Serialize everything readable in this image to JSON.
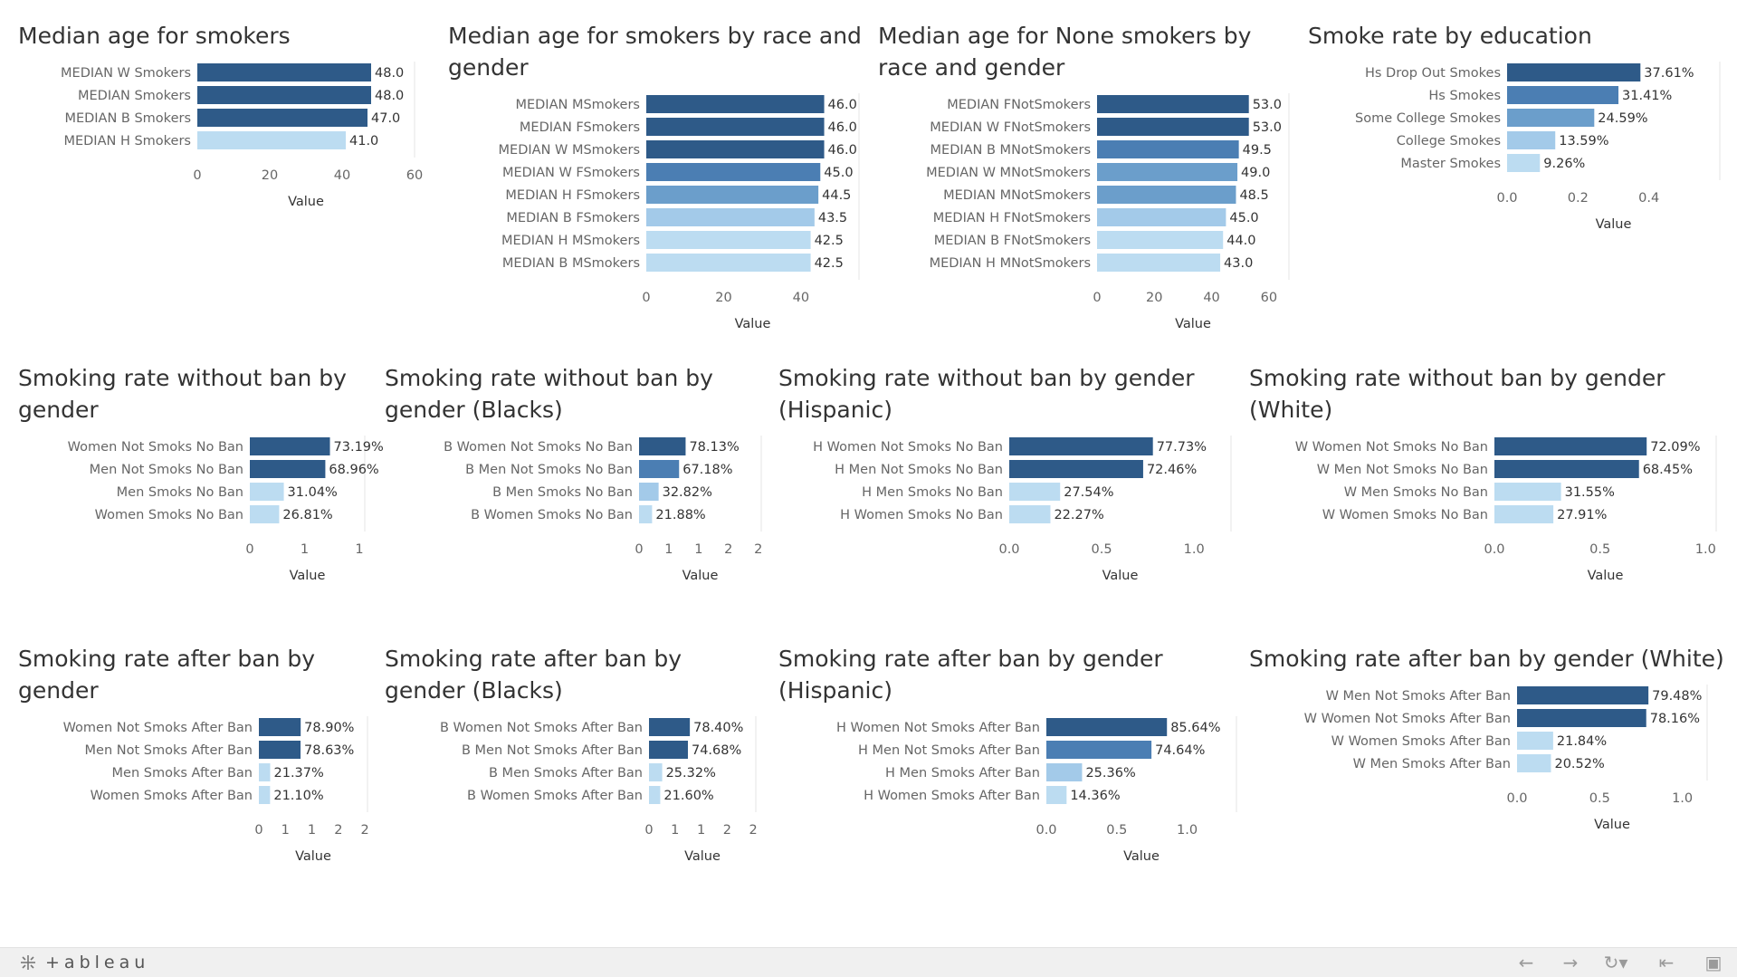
{
  "colors": {
    "dark": "#2e5a88",
    "mid_dark": "#4b7eb3",
    "mid": "#6b9ecb",
    "light": "#a3cae9",
    "lightest": "#bcdcf1"
  },
  "chart_data": [
    {
      "type": "bar",
      "title": "Median age for smokers",
      "xlabel": "Value",
      "xlim": [
        0,
        60
      ],
      "ticks": [
        0,
        20,
        40,
        60
      ],
      "tick_labels": [
        "0",
        "20",
        "40",
        "60"
      ],
      "categories": [
        "MEDIAN W Smokers",
        "MEDIAN Smokers",
        "MEDIAN B Smokers",
        "MEDIAN H Smokers"
      ],
      "values": [
        48.0,
        48.0,
        47.0,
        41.0
      ],
      "value_labels": [
        "48.0",
        "48.0",
        "47.0",
        "41.0"
      ]
    },
    {
      "type": "bar",
      "title": "Median age for smokers by race and gender",
      "xlabel": "Value",
      "xlim": [
        0,
        55
      ],
      "ticks": [
        0,
        20,
        40
      ],
      "tick_labels": [
        "0",
        "20",
        "40"
      ],
      "categories": [
        "MEDIAN MSmokers",
        "MEDIAN FSmokers",
        "MEDIAN W MSmokers",
        "MEDIAN W FSmokers",
        "MEDIAN H FSmokers",
        "MEDIAN B FSmokers",
        "MEDIAN H MSmokers",
        "MEDIAN B MSmokers"
      ],
      "values": [
        46.0,
        46.0,
        46.0,
        45.0,
        44.5,
        43.5,
        42.5,
        42.5
      ],
      "value_labels": [
        "46.0",
        "46.0",
        "46.0",
        "45.0",
        "44.5",
        "43.5",
        "42.5",
        "42.5"
      ]
    },
    {
      "type": "bar",
      "title": "Median age for None smokers by race and gender",
      "xlabel": "Value",
      "xlim": [
        0,
        67
      ],
      "ticks": [
        0,
        20,
        40,
        60
      ],
      "tick_labels": [
        "0",
        "20",
        "40",
        "60"
      ],
      "categories": [
        "MEDIAN FNotSmokers",
        "MEDIAN W FNotSmokers",
        "MEDIAN B MNotSmokers",
        "MEDIAN W MNotSmokers",
        "MEDIAN MNotSmokers",
        "MEDIAN H FNotSmokers",
        "MEDIAN B FNotSmokers",
        "MEDIAN H MNotSmokers"
      ],
      "values": [
        53.0,
        53.0,
        49.5,
        49.0,
        48.5,
        45.0,
        44.0,
        43.0
      ],
      "value_labels": [
        "53.0",
        "53.0",
        "49.5",
        "49.0",
        "48.5",
        "45.0",
        "44.0",
        "43.0"
      ]
    },
    {
      "type": "bar",
      "title": "Smoke rate by education",
      "xlabel": "Value",
      "xlim": [
        0,
        0.6
      ],
      "ticks": [
        0,
        0.2,
        0.4
      ],
      "tick_labels": [
        "0.0",
        "0.2",
        "0.4"
      ],
      "categories": [
        "Hs Drop Out Smokes",
        "Hs Smokes",
        "Some College Smokes",
        "College Smokes",
        "Master Smokes"
      ],
      "values": [
        0.3761,
        0.3141,
        0.2459,
        0.1359,
        0.0926
      ],
      "value_labels": [
        "37.61%",
        "31.41%",
        "24.59%",
        "13.59%",
        "9.26%"
      ]
    },
    {
      "type": "bar",
      "title": "Smoking rate without ban by gender",
      "xlabel": "Value",
      "xlim": [
        0,
        1.05
      ],
      "ticks": [
        0,
        0.5,
        1
      ],
      "tick_labels": [
        "0",
        "1",
        "1"
      ],
      "categories": [
        "Women Not Smoks No Ban",
        "Men Not Smoks No Ban",
        "Men Smoks No Ban",
        "Women Smoks No Ban"
      ],
      "values": [
        0.7319,
        0.6896,
        0.3104,
        0.2681
      ],
      "value_labels": [
        "73.19%",
        "68.96%",
        "31.04%",
        "26.81%"
      ]
    },
    {
      "type": "bar",
      "title": "Smoking rate without ban by gender (Blacks)",
      "xlabel": "Value",
      "xlim": [
        0,
        2.05
      ],
      "ticks": [
        0,
        0.5,
        1,
        1.5,
        2
      ],
      "tick_labels": [
        "0",
        "1",
        "1",
        "2",
        "2"
      ],
      "categories": [
        "B Women Not Smoks No Ban",
        "B Men Not Smoks No Ban",
        "B Men Smoks No Ban",
        "B Women Smoks No Ban"
      ],
      "values": [
        0.7813,
        0.6718,
        0.3282,
        0.2188
      ],
      "value_labels": [
        "78.13%",
        "67.18%",
        "32.82%",
        "21.88%"
      ]
    },
    {
      "type": "bar",
      "title": "Smoking rate without ban by gender (Hispanic)",
      "xlabel": "Value",
      "xlim": [
        0,
        1.2
      ],
      "ticks": [
        0,
        0.5,
        1
      ],
      "tick_labels": [
        "0.0",
        "0.5",
        "1.0"
      ],
      "categories": [
        "H Women Not Smoks No Ban",
        "H Men Not Smoks No Ban",
        "H Men Smoks No Ban",
        "H Women Smoks No Ban"
      ],
      "values": [
        0.7773,
        0.7246,
        0.2754,
        0.2227
      ],
      "value_labels": [
        "77.73%",
        "72.46%",
        "27.54%",
        "22.27%"
      ]
    },
    {
      "type": "bar",
      "title": "Smoking rate without ban by gender (White)",
      "xlabel": "Value",
      "xlim": [
        0,
        1.05
      ],
      "ticks": [
        0,
        0.5,
        1
      ],
      "tick_labels": [
        "0.0",
        "0.5",
        "1.0"
      ],
      "categories": [
        "W Women Not Smoks No Ban",
        "W Men Not Smoks No Ban",
        "W Men Smoks No Ban",
        "W Women Smoks No Ban"
      ],
      "values": [
        0.7209,
        0.6845,
        0.3155,
        0.2791
      ],
      "value_labels": [
        "72.09%",
        "68.45%",
        "31.55%",
        "27.91%"
      ]
    },
    {
      "type": "bar",
      "title": "Smoking rate after ban by gender",
      "xlabel": "Value",
      "xlim": [
        0,
        2.05
      ],
      "ticks": [
        0,
        0.5,
        1,
        1.5,
        2
      ],
      "tick_labels": [
        "0",
        "1",
        "1",
        "2",
        "2"
      ],
      "categories": [
        "Women Not Smoks After Ban",
        "Men Not Smoks After Ban",
        "Men Smoks After Ban",
        "Women Smoks After Ban"
      ],
      "values": [
        0.789,
        0.7863,
        0.2137,
        0.211
      ],
      "value_labels": [
        "78.90%",
        "78.63%",
        "21.37%",
        "21.10%"
      ]
    },
    {
      "type": "bar",
      "title": "Smoking rate after ban by gender (Blacks)",
      "xlabel": "Value",
      "xlim": [
        0,
        2.05
      ],
      "ticks": [
        0,
        0.5,
        1,
        1.5,
        2
      ],
      "tick_labels": [
        "0",
        "1",
        "1",
        "2",
        "2"
      ],
      "categories": [
        "B Women Not Smoks After Ban",
        "B Men Not Smoks After Ban",
        "B Men Smoks After Ban",
        "B Women Smoks After Ban"
      ],
      "values": [
        0.784,
        0.7468,
        0.2532,
        0.216
      ],
      "value_labels": [
        "78.40%",
        "74.68%",
        "25.32%",
        "21.60%"
      ]
    },
    {
      "type": "bar",
      "title": "Smoking rate after ban by gender (Hispanic)",
      "xlabel": "Value",
      "xlim": [
        0,
        1.35
      ],
      "ticks": [
        0,
        0.5,
        1
      ],
      "tick_labels": [
        "0.0",
        "0.5",
        "1.0"
      ],
      "categories": [
        "H Women Not Smoks After Ban",
        "H Men Not Smoks After Ban",
        "H Men Smoks After Ban",
        "H Women Smoks After Ban"
      ],
      "values": [
        0.8564,
        0.7464,
        0.2536,
        0.1436
      ],
      "value_labels": [
        "85.64%",
        "74.64%",
        "25.36%",
        "14.36%"
      ]
    },
    {
      "type": "bar",
      "title": "Smoking rate after ban by gender (White)",
      "xlabel": "Value",
      "xlim": [
        0,
        1.15
      ],
      "ticks": [
        0,
        0.5,
        1
      ],
      "tick_labels": [
        "0.0",
        "0.5",
        "1.0"
      ],
      "categories": [
        "W Men Not Smoks After Ban",
        "W Women Not Smoks After Ban",
        "W Women Smoks After Ban",
        "W Men Smoks After Ban"
      ],
      "values": [
        0.7948,
        0.7816,
        0.2184,
        0.2052
      ],
      "value_labels": [
        "79.48%",
        "78.16%",
        "21.84%",
        "20.52%"
      ]
    }
  ],
  "toolbar": {
    "brand": "+ableau",
    "undo_icon": "undo-icon",
    "redo_icon": "redo-icon",
    "revert_icon": "revert-icon",
    "share_icon": "share-icon",
    "fullscreen_icon": "fullscreen-icon"
  }
}
